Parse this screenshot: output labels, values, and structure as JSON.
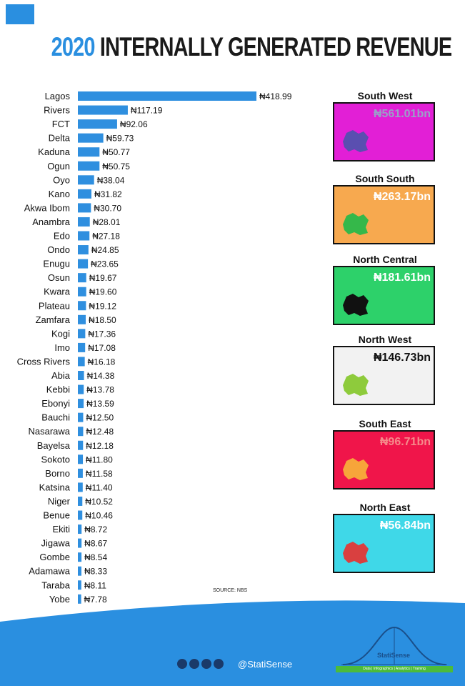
{
  "title": {
    "year": "2020",
    "rest": "INTERNALLY GENERATED REVENUE"
  },
  "chart_data": {
    "type": "bar",
    "orientation": "horizontal",
    "categories": [
      "Lagos",
      "Rivers",
      "FCT",
      "Delta",
      "Kaduna",
      "Ogun",
      "Oyo",
      "Kano",
      "Akwa Ibom",
      "Anambra",
      "Edo",
      "Ondo",
      "Enugu",
      "Osun",
      "Kwara",
      "Plateau",
      "Zamfara",
      "Kogi",
      "Imo",
      "Cross Rivers",
      "Abia",
      "Kebbi",
      "Ebonyi",
      "Bauchi",
      "Nasarawa",
      "Bayelsa",
      "Sokoto",
      "Borno",
      "Katsina",
      "Niger",
      "Benue",
      "Ekiti",
      "Jigawa",
      "Gombe",
      "Adamawa",
      "Taraba",
      "Yobe"
    ],
    "values": [
      418.99,
      117.19,
      92.06,
      59.73,
      50.77,
      50.75,
      38.04,
      31.82,
      30.7,
      28.01,
      27.18,
      24.85,
      23.65,
      19.67,
      19.6,
      19.12,
      18.5,
      17.36,
      17.08,
      16.18,
      14.38,
      13.78,
      13.59,
      12.5,
      12.48,
      12.18,
      11.8,
      11.58,
      11.4,
      10.52,
      10.46,
      8.72,
      8.67,
      8.54,
      8.33,
      8.11,
      7.78
    ],
    "labels": [
      "₦418.99",
      "₦117.19",
      "₦92.06",
      "₦59.73",
      "₦50.77",
      "₦50.75",
      "₦38.04",
      "₦31.82",
      "₦30.70",
      "₦28.01",
      "₦27.18",
      "₦24.85",
      "₦23.65",
      "₦19.67",
      "₦19.60",
      "₦19.12",
      "₦18.50",
      "₦17.36",
      "₦17.08",
      "₦16.18",
      "₦14.38",
      "₦13.78",
      "₦13.59",
      "₦12.50",
      "₦12.48",
      "₦12.18",
      "₦11.80",
      "₦11.58",
      "₦11.40",
      "₦10.52",
      "₦10.46",
      "₦8.72",
      "₦8.67",
      "₦8.54",
      "₦8.33",
      "₦8.11",
      "₦7.78"
    ],
    "bar_color": "#2f8fdf"
  },
  "regions": [
    {
      "name": "South West",
      "value": "₦561.01bn",
      "bg": "#e21fd6",
      "text_color": "#9aa0c8",
      "map_color": "#5a4fb0"
    },
    {
      "name": "South South",
      "value": "₦263.17bn",
      "bg": "#f7a94f",
      "text_color": "#ffffff",
      "map_color": "#35b84a"
    },
    {
      "name": "North Central",
      "value": "₦181.61bn",
      "bg": "#2dd16a",
      "text_color": "#ffffff",
      "map_color": "#111111"
    },
    {
      "name": "North West",
      "value": "₦146.73bn",
      "bg": "#f2f2f2",
      "text_color": "#111111",
      "map_color": "#8ecb3c"
    },
    {
      "name": "South East",
      "value": "₦96.71bn",
      "bg": "#f0154a",
      "text_color": "#f58a8a",
      "map_color": "#f7a53a"
    },
    {
      "name": "North East",
      "value": "₦56.84bn",
      "bg": "#3fd8e8",
      "text_color": "#ffffff",
      "map_color": "#d94040"
    }
  ],
  "source": "SOURCE: NBS",
  "footer": {
    "handle": "@StatiSense",
    "brand": "StatiSense",
    "tagline": "Data | Infographics | Analytics | Training",
    "wave_color": "#2a8fe0"
  }
}
